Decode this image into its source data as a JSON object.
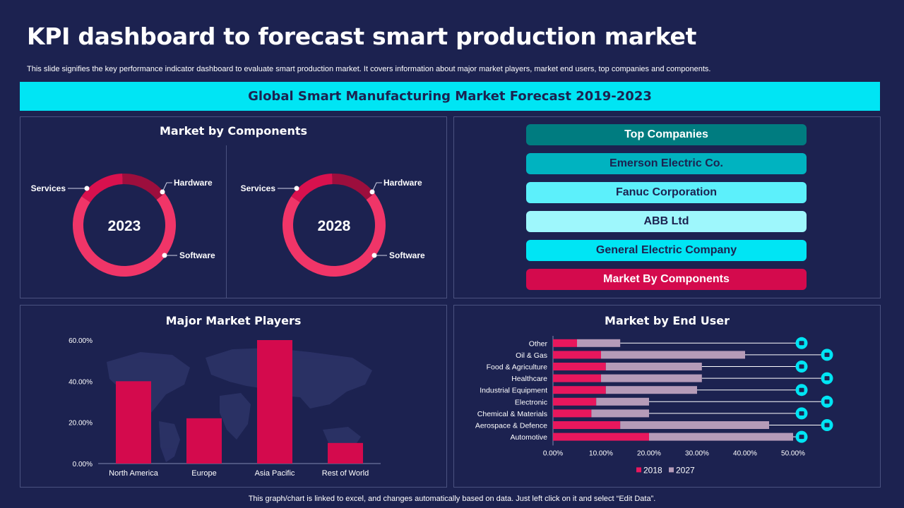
{
  "header": {
    "title": "KPI dashboard to forecast smart production market",
    "subtitle": "This slide signifies the key performance indicator dashboard to evaluate smart production market. It covers information about major market players, market end users, top companies and components.",
    "banner": "Global Smart Manufacturing  Market Forecast 2019-2023"
  },
  "components_panel": {
    "title": "Market by Components",
    "donuts": [
      {
        "year": "2023",
        "labels": {
          "services": "Services",
          "hardware": "Hardware",
          "software": "Software"
        }
      },
      {
        "year": "2028",
        "labels": {
          "services": "Services",
          "hardware": "Hardware",
          "software": "Software"
        }
      }
    ]
  },
  "companies_panel": {
    "items": [
      {
        "label": "Top Companies",
        "bg": "#007c80",
        "fg": "#ffffff"
      },
      {
        "label": "Emerson Electric Co.",
        "bg": "#00b3c0",
        "fg": "#1c2250"
      },
      {
        "label": "Fanuc Corporation",
        "bg": "#5cf0fb",
        "fg": "#1c2250"
      },
      {
        "label": "ABB Ltd",
        "bg": "#9ef7fc",
        "fg": "#1c2250"
      },
      {
        "label": "General Electric Company",
        "bg": "#00e5f4",
        "fg": "#1c2250"
      },
      {
        "label": "Market By Components",
        "bg": "#d40a4d",
        "fg": "#ffffff"
      }
    ]
  },
  "players_panel": {
    "title": "Major Market Players"
  },
  "enduser_panel": {
    "title": "Market by End User",
    "icons": [
      "building-icon",
      "fuel-pump-icon",
      "crossed-tools-icon",
      "lightbulb-icon",
      "factory-icon",
      "city-icon",
      "flask-icon",
      "aircraft-icon",
      "car-icon"
    ]
  },
  "footer": "This graph/chart is linked to excel,  and changes automatically based on data. Just left click on it and select “Edit Data”.",
  "colors": {
    "background": "#1c2250",
    "accent": "#00e5f4",
    "bar": "#d40a4d",
    "series_2018": "#e8175d",
    "series_2027": "#b59bb8",
    "donut_services": "#d8114e",
    "donut_hardware": "#9c0e3d",
    "donut_software": "#f03568"
  },
  "chart_data": [
    {
      "type": "pie",
      "subtype": "donut",
      "center_label": "2023",
      "slices": [
        {
          "name": "Services",
          "value": 15
        },
        {
          "name": "Hardware",
          "value": 15
        },
        {
          "name": "Software",
          "value": 70
        }
      ]
    },
    {
      "type": "pie",
      "subtype": "donut",
      "center_label": "2028",
      "slices": [
        {
          "name": "Services",
          "value": 15
        },
        {
          "name": "Hardware",
          "value": 15
        },
        {
          "name": "Software",
          "value": 70
        }
      ]
    },
    {
      "type": "bar",
      "title": "Major Market Players",
      "categories": [
        "North America",
        "Europe",
        "Asia Pacific",
        "Rest  of World"
      ],
      "values": [
        40,
        22,
        60,
        10
      ],
      "ylim": [
        0,
        60
      ],
      "yticks": [
        "0.00%",
        "20.00%",
        "40.00%",
        "60.00%"
      ],
      "background": "world-map"
    },
    {
      "type": "bar",
      "orientation": "horizontal",
      "stacked": true,
      "title": "Market by End User",
      "categories": [
        "Other",
        "Oil & Gas",
        "Food & Agriculture",
        "Healthcare",
        "Industrial Equipment",
        "Electronic",
        "Chemical & Materials",
        "Aerospace & Defence",
        "Automotive"
      ],
      "series": [
        {
          "name": "2018",
          "values": [
            5,
            10,
            11,
            10,
            11,
            9,
            8,
            14,
            20
          ]
        },
        {
          "name": "2027",
          "values": [
            9,
            30,
            20,
            21,
            19,
            11,
            12,
            31,
            30
          ]
        }
      ],
      "xlim": [
        0,
        50
      ],
      "xticks": [
        "0.00%",
        "10.00%",
        "20.00%",
        "30.00%",
        "40.00%",
        "50.00%"
      ],
      "legend": "bottom"
    }
  ]
}
